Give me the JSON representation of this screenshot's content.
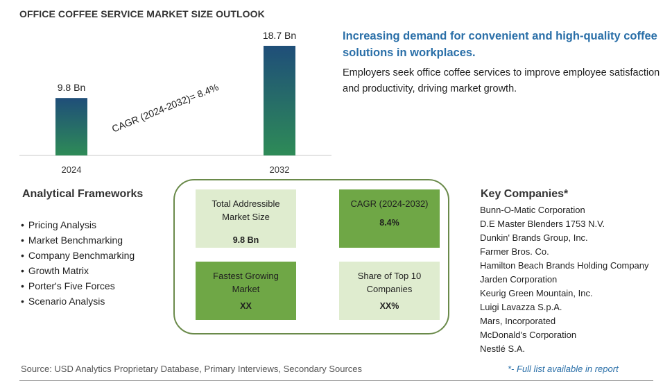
{
  "title": "OFFICE COFFEE SERVICE MARKET SIZE OUTLOOK",
  "chart_data": {
    "type": "bar",
    "categories": [
      "2024",
      "2032"
    ],
    "values": [
      9.8,
      18.7
    ],
    "value_labels": [
      "9.8 Bn",
      "18.7 Bn"
    ],
    "annotation": "CAGR (2024-2032)=  8.4%",
    "ylim": [
      0,
      18.7
    ],
    "grid": false,
    "bar_colors": [
      "#1f4e79",
      "#2e8b57"
    ]
  },
  "headline": "Increasing demand for convenient and high-quality coffee solutions in workplaces.",
  "subtext": "Employers seek office coffee services to improve employee satisfaction and productivity, driving market growth.",
  "frameworks": {
    "title": "Analytical Frameworks",
    "items": [
      "Pricing Analysis",
      "Market Benchmarking",
      "Company Benchmarking",
      "Growth Matrix",
      "Porter's Five Forces",
      "Scenario Analysis"
    ]
  },
  "summary": {
    "tam_label": "Total Addressible Market Size",
    "tam_value": "9.8 Bn",
    "cagr_label": "CAGR (2024-2032)",
    "cagr_value": "8.4%",
    "fastest_label": "Fastest Growing Market",
    "fastest_value": "XX",
    "share_label": "Share of Top 10 Companies",
    "share_value": "XX%"
  },
  "companies": {
    "title": "Key Companies*",
    "items": [
      "Bunn-O-Matic Corporation",
      "D.E Master Blenders 1753 N.V.",
      "Dunkin' Brands Group, Inc.",
      "Farmer Bros. Co.",
      "Hamilton Beach Brands Holding Company",
      "Jarden Corporation",
      "Keurig Green Mountain, Inc.",
      "Luigi Lavazza S.p.A.",
      "Mars, Incorporated",
      "McDonald's Corporation",
      "Nestlé S.A."
    ]
  },
  "source": "Source: USD Analytics Proprietary Database, Primary Interviews, Secondary Sources",
  "full_list_note": "*- Full list available in report",
  "colors": {
    "accent_blue": "#2a6fa8",
    "card_light": "#dfeccf",
    "card_dark": "#6fa746",
    "box_border": "#6a8a4a"
  }
}
